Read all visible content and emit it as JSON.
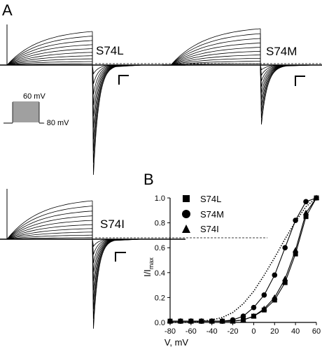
{
  "panels": {
    "a_label": "A",
    "b_label": "B",
    "traces": [
      "S74L",
      "S74M",
      "S74I"
    ],
    "protocol": {
      "top_voltage": "60 mV",
      "bottom_voltage": "- 80 mV"
    }
  },
  "chart_data": {
    "type": "scatter",
    "xlabel": "V, mV",
    "ylabel": "I/I",
    "ylabel_sub": "max",
    "xlim": [
      -80,
      60
    ],
    "ylim": [
      0,
      1.0
    ],
    "xticks": [
      "-80",
      "-60",
      "-40",
      "-20",
      "0",
      "20",
      "40",
      "60"
    ],
    "yticks": [
      "0.0",
      "0.2",
      "0.4",
      "0.6",
      "0.8",
      "1.0"
    ],
    "x": [
      -80,
      -70,
      -60,
      -50,
      -40,
      -30,
      -20,
      -10,
      0,
      10,
      20,
      30,
      40,
      50,
      60
    ],
    "series": [
      {
        "name": "S74L",
        "marker": "square",
        "values": [
          0.01,
          0.01,
          0.01,
          0.01,
          0.01,
          0.01,
          0.01,
          0.02,
          0.05,
          0.1,
          0.18,
          0.32,
          0.55,
          0.85,
          1.0
        ]
      },
      {
        "name": "S74M",
        "marker": "circle",
        "values": [
          0.01,
          0.01,
          0.01,
          0.01,
          0.01,
          0.01,
          0.02,
          0.05,
          0.12,
          0.22,
          0.38,
          0.6,
          0.82,
          0.97,
          1.0
        ]
      },
      {
        "name": "S74I",
        "marker": "triangle",
        "values": [
          0.01,
          0.01,
          0.01,
          0.01,
          0.01,
          0.01,
          0.01,
          0.02,
          0.05,
          0.11,
          0.2,
          0.35,
          0.58,
          0.88,
          1.0
        ]
      }
    ],
    "reference_curve": {
      "style": "dotted",
      "values": [
        0.0,
        0.0,
        0.0,
        0.01,
        0.02,
        0.04,
        0.08,
        0.15,
        0.25,
        0.38,
        0.52,
        0.67,
        0.81,
        0.93,
        1.0
      ]
    },
    "legend": "top-left"
  }
}
